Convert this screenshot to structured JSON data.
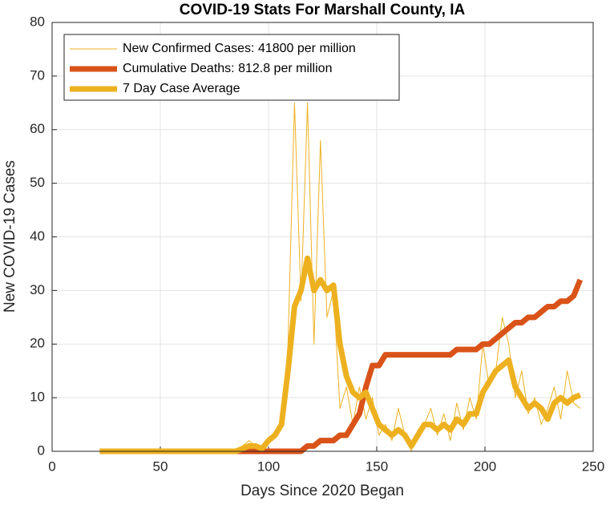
{
  "chart_data": {
    "type": "line",
    "title": "COVID-19 Stats For Marshall County, IA",
    "xlabel": "Days Since 2020 Began",
    "ylabel": "New COVID-19 Cases",
    "x": [
      22,
      25,
      28,
      31,
      34,
      37,
      40,
      43,
      46,
      49,
      52,
      55,
      58,
      61,
      64,
      67,
      70,
      73,
      76,
      79,
      82,
      85,
      88,
      91,
      94,
      97,
      100,
      103,
      106,
      109,
      112,
      115,
      118,
      121,
      124,
      127,
      130,
      133,
      136,
      139,
      142,
      145,
      148,
      151,
      154,
      157,
      160,
      163,
      166,
      169,
      172,
      175,
      178,
      181,
      184,
      187,
      190,
      193,
      196,
      199,
      202,
      205,
      208,
      211,
      214,
      217,
      220,
      223,
      226,
      229,
      232,
      235,
      238,
      241,
      244
    ],
    "series": [
      {
        "name": "New Confirmed Cases: 41800 per million",
        "color": "#EDB120",
        "values": [
          0,
          0,
          0,
          0,
          0,
          0,
          0,
          0,
          0,
          0,
          0,
          0,
          0,
          0,
          0,
          0,
          0,
          0,
          0,
          0,
          0,
          0,
          1,
          2,
          1,
          0,
          2,
          3,
          5,
          20,
          65,
          28,
          65,
          20,
          58,
          25,
          30,
          8,
          12,
          5,
          12,
          6,
          10,
          3,
          5,
          2,
          8,
          3,
          0,
          4,
          5,
          8,
          3,
          7,
          2,
          9,
          4,
          10,
          6,
          20,
          12,
          15,
          25,
          20,
          10,
          15,
          7,
          10,
          5,
          8,
          12,
          6,
          15,
          9,
          8
        ]
      },
      {
        "name": "Cumulative Deaths: 812.8 per million",
        "color": "#D95319",
        "values": [
          0,
          0,
          0,
          0,
          0,
          0,
          0,
          0,
          0,
          0,
          0,
          0,
          0,
          0,
          0,
          0,
          0,
          0,
          0,
          0,
          0,
          0,
          0,
          0,
          0,
          0,
          0,
          0,
          0,
          0,
          0,
          0,
          1,
          1,
          2,
          2,
          2,
          3,
          3,
          5,
          7,
          12,
          16,
          16,
          18,
          18,
          18,
          18,
          18,
          18,
          18,
          18,
          18,
          18,
          18,
          19,
          19,
          19,
          19,
          20,
          20,
          21,
          22,
          23,
          24,
          24,
          25,
          25,
          26,
          27,
          27,
          28,
          28,
          29,
          32
        ]
      },
      {
        "name": "7 Day Case Average",
        "color": "#EDB120",
        "values": [
          0,
          0,
          0,
          0,
          0,
          0,
          0,
          0,
          0,
          0,
          0,
          0,
          0,
          0,
          0,
          0,
          0,
          0,
          0,
          0,
          0,
          0,
          0.5,
          1,
          1,
          0.5,
          2,
          3,
          5,
          15,
          27,
          30,
          36,
          30,
          32,
          30,
          31,
          20,
          14,
          11,
          10,
          11,
          8,
          5,
          4,
          3,
          4,
          3,
          1,
          3,
          5,
          5,
          4,
          5,
          4,
          6,
          5,
          7,
          7,
          11,
          13,
          15,
          16,
          17,
          12,
          10,
          8,
          9,
          8,
          6,
          9,
          10,
          9,
          10,
          10.5
        ]
      }
    ],
    "xlim": [
      0,
      250
    ],
    "xticks": [
      0,
      50,
      100,
      150,
      200,
      250
    ],
    "ylim": [
      0,
      80
    ],
    "yticks": [
      0,
      10,
      20,
      30,
      40,
      50,
      60,
      70,
      80
    ],
    "grid": true,
    "legend": "top-left"
  }
}
